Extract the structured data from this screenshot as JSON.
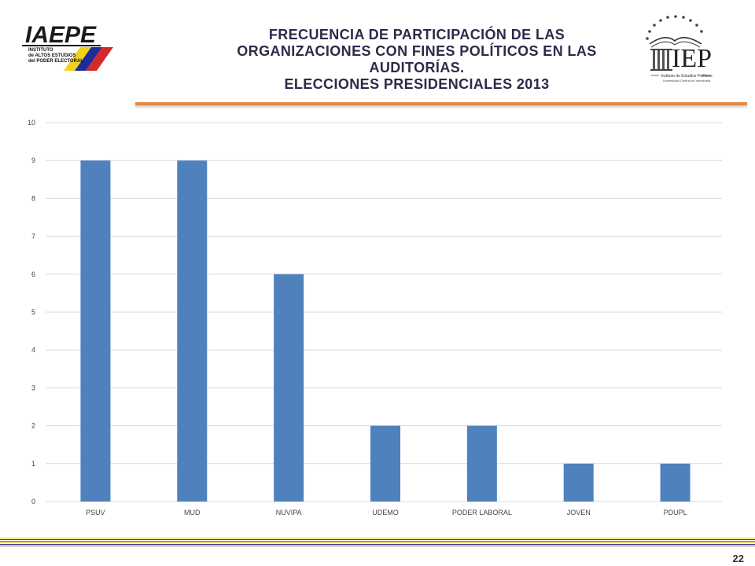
{
  "header": {
    "title_lines": [
      "FRECUENCIA DE PARTICIPACIÓN DE LAS",
      "ORGANIZACIONES CON FINES POLÍTICOS EN LAS",
      "AUDITORÍAS.",
      "ELECCIONES PRESIDENCIALES 2013"
    ]
  },
  "logos": {
    "left": {
      "name": "IAEPE",
      "subtitle_lines": [
        "INSTITUTO",
        "de ALTOS ESTUDIOS",
        "del PODER ELECTORAL"
      ]
    },
    "right": {
      "name": "IEP",
      "tagline": "Instituto de Estudios Políticos",
      "subline": "Universidad Central de Venezuela"
    }
  },
  "colors": {
    "bar": "#4f81bd",
    "grid": "#d9d9d9",
    "title": "#2b2b4a",
    "underline": "#e28a43",
    "stripes": [
      "#e8c21e",
      "#2c3a8c",
      "#d63a3a",
      "#e8c21e",
      "#2c3a8c",
      "#d63a3a"
    ]
  },
  "chart_data": {
    "type": "bar",
    "categories": [
      "PSUV",
      "MUD",
      "NUVIPA",
      "UDEMO",
      "PODER LABORAL",
      "JOVEN",
      "PDUPL"
    ],
    "values": [
      9,
      9,
      6,
      2,
      2,
      1,
      1
    ],
    "ylim": [
      0,
      10
    ],
    "yticks": [
      0,
      1,
      2,
      3,
      4,
      5,
      6,
      7,
      8,
      9,
      10
    ],
    "xlabel": "",
    "ylabel": "",
    "grid": true,
    "legend": "none"
  },
  "footer": {
    "page_number": "22"
  }
}
